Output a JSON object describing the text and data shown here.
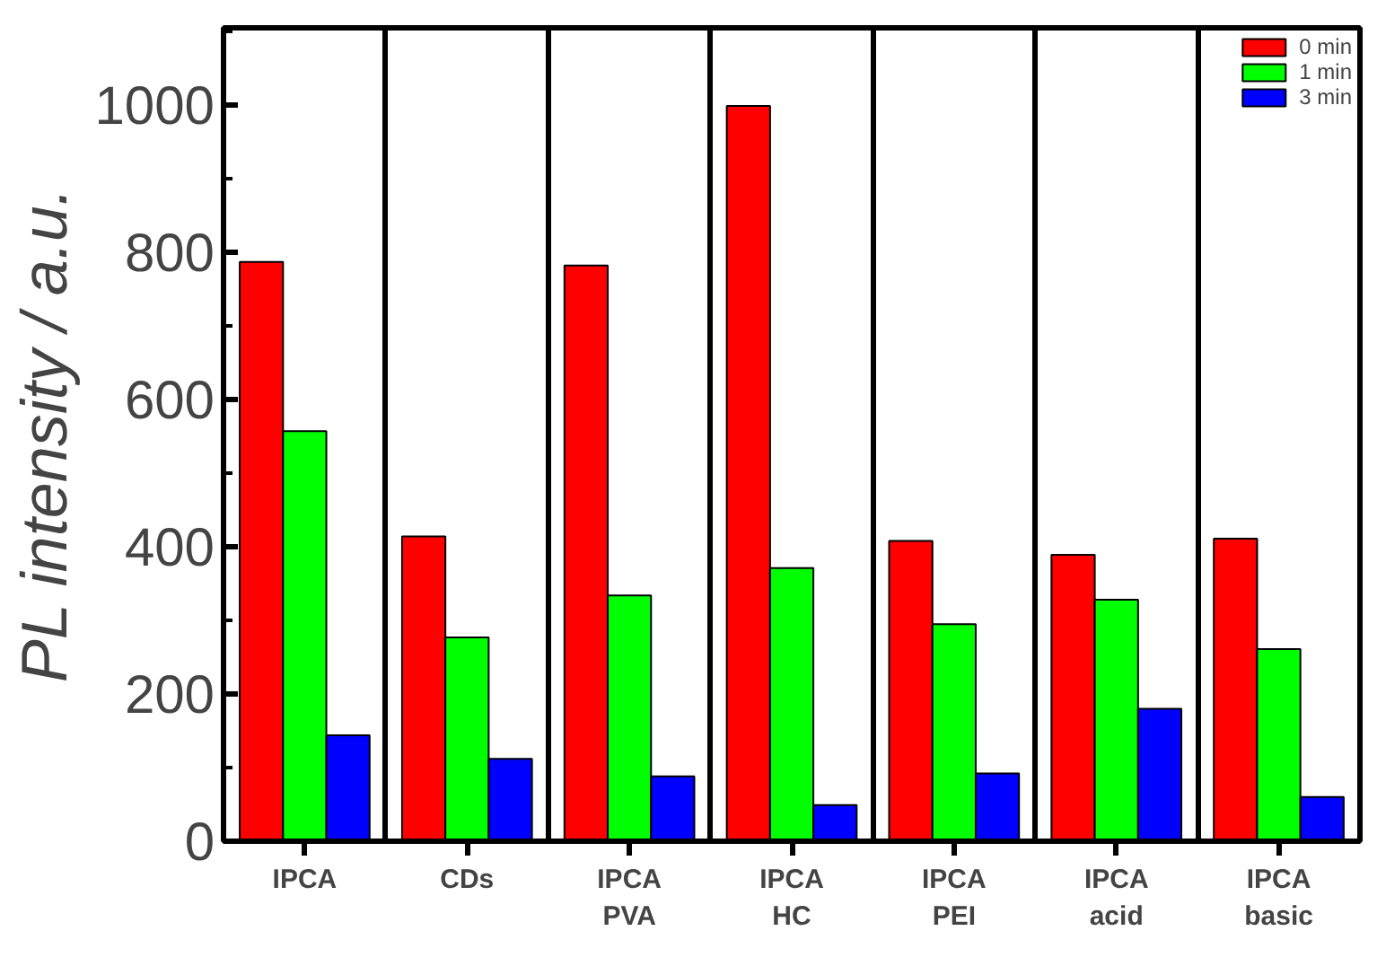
{
  "chart_data": {
    "type": "bar",
    "ylabel": "PL intensity / a.u.",
    "categories": [
      "IPCA",
      "CDs",
      "IPCA PVA",
      "IPCA HC",
      "IPCA PEI",
      "IPCA acid",
      "IPCA basic"
    ],
    "series": [
      {
        "name": "0 min",
        "color": "#ff0000",
        "values": [
          787,
          414,
          782,
          999,
          408,
          389,
          411
        ]
      },
      {
        "name": "1 min",
        "color": "#00ff00",
        "values": [
          557,
          277,
          334,
          371,
          295,
          328,
          261
        ]
      },
      {
        "name": "3 min",
        "color": "#0000ff",
        "values": [
          144,
          112,
          88,
          49,
          92,
          180,
          60
        ]
      }
    ],
    "ylim": [
      0,
      1105
    ],
    "yticks": [
      0,
      200,
      400,
      600,
      800,
      1000
    ],
    "grid": "x",
    "legend": "top right"
  }
}
